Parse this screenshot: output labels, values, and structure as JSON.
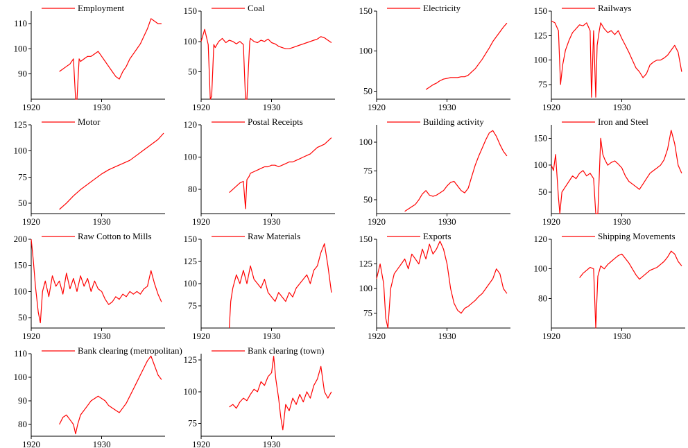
{
  "series_color": "#ff0000",
  "chart_data": [
    {
      "type": "line",
      "name": "Employment",
      "ylim": [
        80,
        115
      ],
      "xlim": [
        1920,
        1939
      ],
      "yticks": [
        90,
        100,
        110
      ],
      "xticks": [
        1920,
        1930
      ],
      "x": [
        1924,
        1924.5,
        1925,
        1925.5,
        1926,
        1926.3,
        1926.5,
        1926.8,
        1927,
        1927.5,
        1928,
        1928.5,
        1929,
        1929.5,
        1930,
        1930.5,
        1931,
        1931.5,
        1932,
        1932.5,
        1933,
        1933.5,
        1934,
        1934.5,
        1935,
        1935.5,
        1936,
        1936.5,
        1937,
        1937.5,
        1938,
        1938.5
      ],
      "y": [
        91,
        92,
        93,
        94,
        96,
        80,
        80,
        96,
        95,
        96,
        97,
        97,
        98,
        99,
        97,
        95,
        93,
        91,
        89,
        88,
        91,
        93,
        96,
        98,
        100,
        102,
        105,
        108,
        112,
        111,
        110,
        110
      ]
    },
    {
      "type": "line",
      "name": "Coal",
      "ylim": [
        5,
        150
      ],
      "xlim": [
        1920,
        1939
      ],
      "yticks": [
        50,
        100,
        150
      ],
      "xticks": [
        1920,
        1930
      ],
      "x": [
        1920,
        1920.5,
        1921,
        1921.3,
        1921.5,
        1921.8,
        1922,
        1922.5,
        1923,
        1923.5,
        1924,
        1924.5,
        1925,
        1925.5,
        1926,
        1926.3,
        1926.5,
        1926.9,
        1927,
        1927.5,
        1928,
        1928.5,
        1929,
        1929.5,
        1930,
        1930.5,
        1931,
        1931.5,
        1932,
        1932.5,
        1933,
        1933.5,
        1934,
        1934.5,
        1935,
        1935.5,
        1936,
        1936.5,
        1937,
        1937.5,
        1938,
        1938.5
      ],
      "y": [
        100,
        120,
        95,
        5,
        10,
        95,
        90,
        100,
        105,
        98,
        102,
        100,
        96,
        100,
        95,
        5,
        5,
        100,
        105,
        100,
        98,
        102,
        100,
        104,
        98,
        96,
        92,
        90,
        88,
        88,
        90,
        92,
        94,
        96,
        98,
        100,
        102,
        104,
        108,
        106,
        102,
        98
      ]
    },
    {
      "type": "line",
      "name": "Electricity",
      "ylim": [
        40,
        150
      ],
      "xlim": [
        1920,
        1939
      ],
      "yticks": [
        50,
        100,
        150
      ],
      "xticks": [
        1920,
        1930
      ],
      "x": [
        1927,
        1927.5,
        1928,
        1928.5,
        1929,
        1929.5,
        1930,
        1930.5,
        1931,
        1931.5,
        1932,
        1932.5,
        1933,
        1933.5,
        1934,
        1934.5,
        1935,
        1935.5,
        1936,
        1936.5,
        1937,
        1937.5,
        1938,
        1938.5
      ],
      "y": [
        52,
        55,
        58,
        60,
        63,
        65,
        66,
        67,
        67,
        67,
        68,
        68,
        70,
        74,
        78,
        84,
        90,
        97,
        104,
        112,
        118,
        124,
        130,
        135
      ]
    },
    {
      "type": "line",
      "name": "Railways",
      "ylim": [
        60,
        150
      ],
      "xlim": [
        1920,
        1939
      ],
      "yticks": [
        75,
        100,
        125,
        150
      ],
      "xticks": [
        1920,
        1930
      ],
      "x": [
        1920,
        1920.5,
        1921,
        1921.3,
        1921.6,
        1922,
        1922.5,
        1923,
        1923.5,
        1924,
        1924.5,
        1925,
        1925.5,
        1925.7,
        1926,
        1926.3,
        1926.5,
        1926.8,
        1927,
        1927.5,
        1928,
        1928.5,
        1929,
        1929.5,
        1930,
        1930.5,
        1931,
        1931.5,
        1932,
        1932.5,
        1933,
        1933.5,
        1934,
        1934.5,
        1935,
        1935.5,
        1936,
        1936.5,
        1937,
        1937.5,
        1938,
        1938.5
      ],
      "y": [
        140,
        138,
        130,
        75,
        95,
        110,
        120,
        128,
        132,
        136,
        135,
        138,
        130,
        62,
        130,
        62,
        115,
        130,
        138,
        132,
        128,
        130,
        126,
        130,
        122,
        115,
        108,
        100,
        92,
        88,
        82,
        86,
        95,
        98,
        100,
        100,
        102,
        105,
        110,
        115,
        108,
        88
      ]
    },
    {
      "type": "line",
      "name": "Motor",
      "ylim": [
        40,
        125
      ],
      "xlim": [
        1920,
        1939
      ],
      "yticks": [
        50,
        75,
        100,
        125
      ],
      "xticks": [
        1920,
        1930
      ],
      "x": [
        1924,
        1925,
        1926,
        1927,
        1928,
        1929,
        1930,
        1931,
        1932,
        1933,
        1934,
        1935,
        1936,
        1937,
        1938,
        1938.8
      ],
      "y": [
        44,
        50,
        57,
        63,
        68,
        73,
        78,
        82,
        85,
        88,
        91,
        96,
        101,
        106,
        111,
        117
      ]
    },
    {
      "type": "line",
      "name": "Postal Receipts",
      "ylim": [
        65,
        120
      ],
      "xlim": [
        1920,
        1939
      ],
      "yticks": [
        80,
        100,
        120
      ],
      "xticks": [
        1920,
        1930
      ],
      "x": [
        1924,
        1924.5,
        1925,
        1925.5,
        1926,
        1926.3,
        1926.5,
        1926.8,
        1927,
        1927.5,
        1928,
        1928.5,
        1929,
        1929.5,
        1930,
        1930.5,
        1931,
        1931.5,
        1932,
        1932.5,
        1933,
        1933.5,
        1934,
        1934.5,
        1935,
        1935.5,
        1936,
        1936.5,
        1937,
        1937.5,
        1938,
        1938.5
      ],
      "y": [
        78,
        80,
        82,
        84,
        85,
        68,
        86,
        88,
        90,
        91,
        92,
        93,
        94,
        94,
        95,
        95,
        94,
        95,
        96,
        97,
        97,
        98,
        99,
        100,
        101,
        102,
        104,
        106,
        107,
        108,
        110,
        112
      ]
    },
    {
      "type": "line",
      "name": "Building activity",
      "ylim": [
        38,
        115
      ],
      "xlim": [
        1920,
        1939
      ],
      "yticks": [
        50,
        75,
        100
      ],
      "xticks": [
        1920,
        1930
      ],
      "x": [
        1924,
        1924.5,
        1925,
        1925.5,
        1926,
        1926.5,
        1927,
        1927.5,
        1928,
        1928.5,
        1929,
        1929.5,
        1930,
        1930.5,
        1931,
        1931.5,
        1932,
        1932.5,
        1933,
        1933.5,
        1934,
        1934.5,
        1935,
        1935.5,
        1936,
        1936.5,
        1937,
        1937.5,
        1938,
        1938.5
      ],
      "y": [
        40,
        42,
        44,
        46,
        50,
        55,
        58,
        54,
        53,
        54,
        56,
        58,
        62,
        65,
        66,
        62,
        58,
        56,
        60,
        70,
        80,
        88,
        95,
        102,
        108,
        110,
        105,
        98,
        92,
        88
      ]
    },
    {
      "type": "line",
      "name": "Iron and Steel",
      "ylim": [
        10,
        175
      ],
      "xlim": [
        1920,
        1939
      ],
      "yticks": [
        50,
        100,
        150
      ],
      "xticks": [
        1920,
        1930
      ],
      "x": [
        1920,
        1920.3,
        1920.6,
        1921,
        1921.2,
        1921.5,
        1922,
        1922.5,
        1923,
        1923.5,
        1924,
        1924.5,
        1925,
        1925.5,
        1926,
        1926.3,
        1926.6,
        1927,
        1927.3,
        1927.6,
        1928,
        1928.5,
        1929,
        1929.5,
        1930,
        1930.5,
        1931,
        1931.5,
        1932,
        1932.5,
        1933,
        1933.5,
        1934,
        1934.5,
        1935,
        1935.5,
        1936,
        1936.5,
        1937,
        1937.5,
        1938,
        1938.5
      ],
      "y": [
        100,
        90,
        120,
        40,
        10,
        50,
        60,
        70,
        80,
        75,
        85,
        90,
        80,
        85,
        75,
        10,
        10,
        150,
        120,
        110,
        100,
        105,
        108,
        102,
        95,
        80,
        70,
        65,
        60,
        55,
        65,
        75,
        85,
        90,
        95,
        100,
        110,
        130,
        165,
        140,
        100,
        85
      ]
    },
    {
      "type": "line",
      "name": "Raw Cotton to Mills",
      "ylim": [
        30,
        200
      ],
      "xlim": [
        1920,
        1939
      ],
      "yticks": [
        50,
        100,
        150,
        200
      ],
      "xticks": [
        1920,
        1930
      ],
      "x": [
        1920,
        1920.3,
        1920.6,
        1921,
        1921.3,
        1921.6,
        1922,
        1922.5,
        1923,
        1923.5,
        1924,
        1924.5,
        1925,
        1925.5,
        1926,
        1926.5,
        1927,
        1927.5,
        1928,
        1928.5,
        1929,
        1929.5,
        1930,
        1930.5,
        1931,
        1931.5,
        1932,
        1932.5,
        1933,
        1933.5,
        1934,
        1934.5,
        1935,
        1935.5,
        1936,
        1936.5,
        1937,
        1937.5,
        1938,
        1938.5
      ],
      "y": [
        200,
        160,
        110,
        60,
        40,
        100,
        120,
        90,
        130,
        110,
        120,
        95,
        135,
        105,
        125,
        100,
        130,
        110,
        125,
        100,
        120,
        105,
        100,
        85,
        75,
        80,
        90,
        85,
        95,
        90,
        100,
        95,
        100,
        95,
        105,
        110,
        140,
        115,
        95,
        80
      ]
    },
    {
      "type": "line",
      "name": "Raw Materials",
      "ylim": [
        50,
        150
      ],
      "xlim": [
        1920,
        1939
      ],
      "yticks": [
        75,
        100,
        125,
        150
      ],
      "xticks": [
        1920,
        1930
      ],
      "x": [
        1924,
        1924.2,
        1924.5,
        1925,
        1925.5,
        1926,
        1926.5,
        1927,
        1927.5,
        1928,
        1928.5,
        1929,
        1929.5,
        1930,
        1930.5,
        1931,
        1931.5,
        1932,
        1932.5,
        1933,
        1933.5,
        1934,
        1934.5,
        1935,
        1935.5,
        1936,
        1936.5,
        1937,
        1937.5,
        1938,
        1938.5
      ],
      "y": [
        50,
        80,
        95,
        110,
        100,
        115,
        100,
        120,
        105,
        100,
        95,
        105,
        90,
        85,
        80,
        90,
        85,
        80,
        90,
        85,
        95,
        100,
        105,
        110,
        100,
        115,
        120,
        135,
        145,
        120,
        90
      ]
    },
    {
      "type": "line",
      "name": "Exports",
      "ylim": [
        60,
        150
      ],
      "xlim": [
        1920,
        1939
      ],
      "yticks": [
        75,
        100,
        125,
        150
      ],
      "xticks": [
        1920,
        1930
      ],
      "x": [
        1920,
        1920.5,
        1921,
        1921.3,
        1921.6,
        1922,
        1922.5,
        1923,
        1923.5,
        1924,
        1924.5,
        1925,
        1925.5,
        1926,
        1926.5,
        1927,
        1927.5,
        1928,
        1928.5,
        1929,
        1929.5,
        1930,
        1930.5,
        1931,
        1931.5,
        1932,
        1932.5,
        1933,
        1933.5,
        1934,
        1934.5,
        1935,
        1935.5,
        1936,
        1936.5,
        1937,
        1937.5,
        1938,
        1938.5
      ],
      "y": [
        110,
        125,
        105,
        70,
        60,
        100,
        115,
        120,
        125,
        130,
        120,
        135,
        130,
        125,
        140,
        130,
        145,
        135,
        140,
        148,
        140,
        125,
        100,
        85,
        78,
        75,
        80,
        82,
        85,
        88,
        92,
        95,
        100,
        105,
        110,
        120,
        115,
        100,
        95
      ]
    },
    {
      "type": "line",
      "name": "Shipping Movements",
      "ylim": [
        60,
        120
      ],
      "xlim": [
        1920,
        1939
      ],
      "yticks": [
        80,
        100,
        120
      ],
      "xticks": [
        1920,
        1930
      ],
      "x": [
        1924,
        1924.5,
        1925,
        1925.5,
        1926,
        1926.3,
        1926.6,
        1927,
        1927.5,
        1928,
        1928.5,
        1929,
        1929.5,
        1930,
        1930.5,
        1931,
        1931.5,
        1932,
        1932.5,
        1933,
        1933.5,
        1934,
        1934.5,
        1935,
        1935.5,
        1936,
        1936.5,
        1937,
        1937.5,
        1938,
        1938.5
      ],
      "y": [
        94,
        97,
        99,
        101,
        100,
        60,
        95,
        102,
        100,
        103,
        105,
        107,
        109,
        110,
        107,
        104,
        100,
        96,
        93,
        95,
        97,
        99,
        100,
        101,
        103,
        105,
        108,
        112,
        110,
        105,
        102
      ]
    },
    {
      "type": "line",
      "name": "Bank clearing (metropolitan)",
      "ylim": [
        75,
        110
      ],
      "xlim": [
        1920,
        1939
      ],
      "yticks": [
        80,
        90,
        100,
        110
      ],
      "xticks": [
        1920,
        1930
      ],
      "x": [
        1924,
        1924.5,
        1925,
        1925.5,
        1926,
        1926.3,
        1926.6,
        1927,
        1927.5,
        1928,
        1928.5,
        1929,
        1929.5,
        1930,
        1930.5,
        1931,
        1931.5,
        1932,
        1932.5,
        1933,
        1933.5,
        1934,
        1934.5,
        1935,
        1935.5,
        1936,
        1936.5,
        1937,
        1937.5,
        1938,
        1938.5
      ],
      "y": [
        80,
        83,
        84,
        82,
        80,
        76,
        80,
        84,
        86,
        88,
        90,
        91,
        92,
        91,
        90,
        88,
        87,
        86,
        85,
        87,
        89,
        92,
        95,
        98,
        101,
        104,
        107,
        109,
        105,
        101,
        99
      ]
    },
    {
      "type": "line",
      "name": "Bank clearing (town)",
      "ylim": [
        65,
        130
      ],
      "xlim": [
        1920,
        1939
      ],
      "yticks": [
        75,
        100,
        125
      ],
      "xticks": [
        1920,
        1930
      ],
      "x": [
        1924,
        1924.5,
        1925,
        1925.5,
        1926,
        1926.5,
        1927,
        1927.5,
        1928,
        1928.5,
        1929,
        1929.5,
        1930,
        1930.3,
        1930.6,
        1931,
        1931.3,
        1931.6,
        1932,
        1932.5,
        1933,
        1933.5,
        1934,
        1934.5,
        1935,
        1935.5,
        1936,
        1936.5,
        1937,
        1937.5,
        1938,
        1938.5
      ],
      "y": [
        88,
        90,
        87,
        92,
        95,
        93,
        98,
        102,
        100,
        108,
        105,
        112,
        115,
        128,
        110,
        95,
        80,
        70,
        90,
        85,
        95,
        90,
        98,
        92,
        100,
        95,
        105,
        110,
        120,
        100,
        95,
        100
      ]
    }
  ]
}
